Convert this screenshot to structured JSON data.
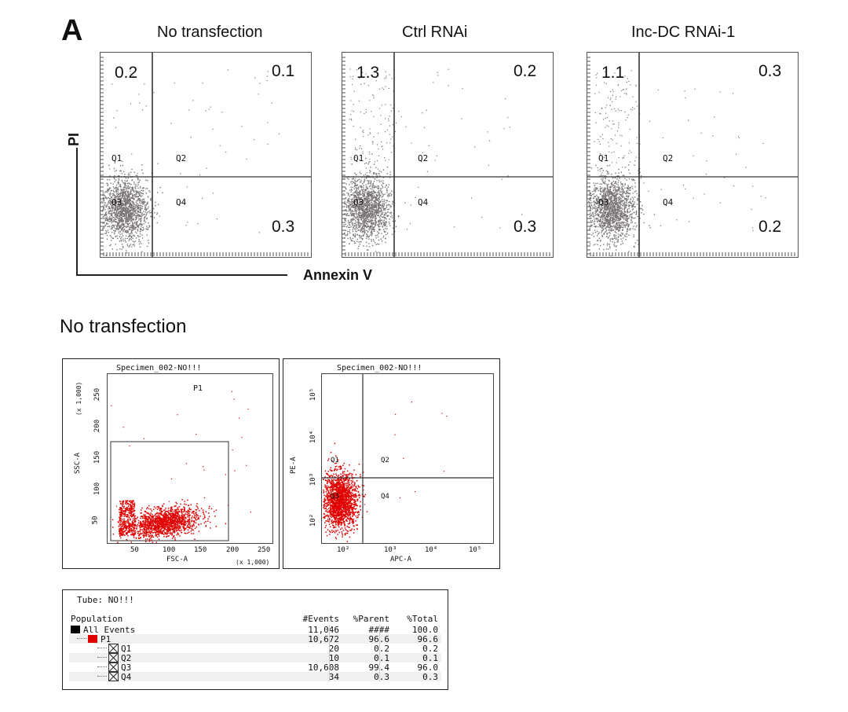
{
  "panel_label": "A",
  "axis_titles": {
    "y": "PI",
    "x": "Annexin V"
  },
  "section_title": "No transfection",
  "chart_data": [
    {
      "type": "scatter",
      "title": "No transfection",
      "xlabel": "Annexin V",
      "ylabel": "PI",
      "quadrant_percentages": {
        "Q1": 0.2,
        "Q2": 0.1,
        "Q3": null,
        "Q4": 0.3
      },
      "value_labels": {
        "Q1": "0.2",
        "Q2": "0.1",
        "Q4": "0.3"
      }
    },
    {
      "type": "scatter",
      "title": "Ctrl RNAi",
      "xlabel": "Annexin V",
      "ylabel": "PI",
      "quadrant_percentages": {
        "Q1": 1.3,
        "Q2": 0.2,
        "Q3": null,
        "Q4": 0.3
      },
      "value_labels": {
        "Q1": "1.3",
        "Q2": "0.2",
        "Q4": "0.3"
      }
    },
    {
      "type": "scatter",
      "title": "Inc-DC RNAi-1",
      "xlabel": "Annexin V",
      "ylabel": "PI",
      "quadrant_percentages": {
        "Q1": 1.1,
        "Q2": 0.3,
        "Q3": null,
        "Q4": 0.2
      },
      "value_labels": {
        "Q1": "1.1",
        "Q2": "0.3",
        "Q4": "0.2"
      }
    },
    {
      "type": "scatter",
      "title": "Specimen_002-NO!!!",
      "xlabel": "FSC-A",
      "ylabel": "SSC-A",
      "x_ticks": [
        "50",
        "100",
        "150",
        "200",
        "250"
      ],
      "y_ticks": [
        "50",
        "100",
        "150",
        "200",
        "250"
      ],
      "x_scale_note": "(x 1,000)",
      "y_scale_note": "(x 1,000)",
      "gate": "P1",
      "point_color": "#e00000"
    },
    {
      "type": "scatter",
      "title": "Specimen_002-NO!!!",
      "xlabel": "APC-A",
      "ylabel": "PE-A",
      "x_ticks": [
        "10²",
        "10³",
        "10⁴",
        "10⁵"
      ],
      "y_ticks": [
        "10²",
        "10³",
        "10⁴",
        "10⁵"
      ],
      "point_color": "#e00000"
    },
    {
      "type": "table",
      "title": "Tube:  NO!!!",
      "columns": [
        "Population",
        "#Events",
        "%Parent",
        "%Total"
      ],
      "rows": [
        {
          "population": "All Events",
          "events": "11,046",
          "parent": "####",
          "total": "100.0",
          "swatch": "#000000"
        },
        {
          "population": "P1",
          "events": "10,672",
          "parent": "96.6",
          "total": "96.6",
          "swatch": "#e00000"
        },
        {
          "population": "Q1",
          "events": "20",
          "parent": "0.2",
          "total": "0.2"
        },
        {
          "population": "Q2",
          "events": "10",
          "parent": "0.1",
          "total": "0.1"
        },
        {
          "population": "Q3",
          "events": "10,608",
          "parent": "99.4",
          "total": "96.0"
        },
        {
          "population": "Q4",
          "events": "34",
          "parent": "0.3",
          "total": "0.3"
        }
      ]
    }
  ],
  "quadrant_names": [
    "Q1",
    "Q2",
    "Q3",
    "Q4"
  ],
  "colors": {
    "top_dots": "#7a7575",
    "red_dots": "#e00000"
  }
}
